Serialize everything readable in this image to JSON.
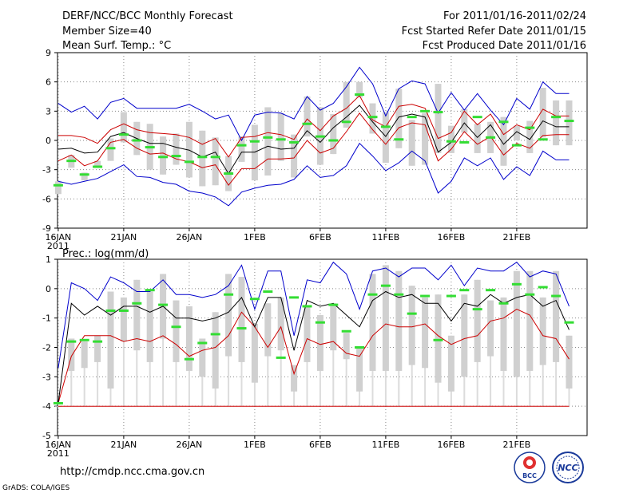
{
  "header": {
    "title": "DERF/NCC/BCC Monthly Forecast",
    "member_size": "Member Size=40",
    "variable": "Mean Surf. Temp.: °C",
    "period": "For 2011/01/16-2011/02/24",
    "started": "Fcst Started Refer Date 2011/01/15",
    "produced": "Fcst Produced Date 2011/01/16"
  },
  "footer": {
    "url": "http://cmdp.ncc.cma.gov.cn",
    "grads": "GrADS: COLA/IGES",
    "logo_bcc": "BCC",
    "logo_ncc": "NCC"
  },
  "colors": {
    "max": "#0000cc",
    "min": "#cc0000",
    "mean": "#000000",
    "box": "#d0d0d0",
    "whisker": "#dcdcdc",
    "median": "#33dd33",
    "grid": "#888888"
  },
  "chart_data": [
    {
      "type": "box",
      "title": "Mean Surf. Temp.: °C",
      "ylim": [
        -9,
        9
      ],
      "yticks": [
        -9,
        -6,
        -3,
        0,
        3,
        6,
        9
      ],
      "x_start_day": 0,
      "x_end_day": 39,
      "xtick_labels": [
        {
          "day": 0,
          "label": "16JAN",
          "sub": "2011"
        },
        {
          "day": 5,
          "label": "21JAN"
        },
        {
          "day": 10,
          "label": "26JAN"
        },
        {
          "day": 15,
          "label": "1FEB"
        },
        {
          "day": 20,
          "label": "6FEB"
        },
        {
          "day": 25,
          "label": "11FEB"
        },
        {
          "day": 30,
          "label": "16FEB"
        },
        {
          "day": 35,
          "label": "21FEB"
        }
      ],
      "series": [
        {
          "name": "max",
          "values": [
            3.8,
            2.9,
            3.5,
            2.2,
            3.9,
            4.3,
            3.3,
            3.3,
            3.3,
            3.3,
            3.7,
            3.0,
            2.2,
            2.6,
            0.0,
            2.6,
            2.9,
            2.8,
            2.2,
            4.5,
            3.1,
            3.8,
            5.5,
            7.5,
            5.8,
            2.5,
            5.3,
            6.1,
            5.8,
            2.8,
            4.9,
            3.1,
            4.8,
            3.1,
            1.6,
            4.3,
            3.2,
            6.0,
            4.8,
            4.8
          ]
        },
        {
          "name": "mean_plus_sd",
          "values": [
            0.5,
            0.5,
            0.3,
            -0.3,
            1.1,
            1.7,
            1.1,
            0.8,
            0.7,
            0.6,
            0.3,
            -0.4,
            0.2,
            -1.7,
            0.3,
            0.4,
            0.8,
            0.6,
            0.1,
            2.2,
            1.0,
            2.5,
            3.3,
            4.6,
            2.1,
            1.4,
            3.5,
            3.7,
            3.3,
            0.2,
            0.8,
            3.0,
            1.6,
            2.7,
            0.6,
            1.6,
            1.1,
            3.2,
            2.5,
            2.5
          ]
        },
        {
          "name": "mean",
          "values": [
            -0.9,
            -0.8,
            -1.3,
            -1.2,
            0.4,
            0.8,
            0.2,
            -0.3,
            -0.3,
            -0.7,
            -1.0,
            -1.7,
            -1.2,
            -3.4,
            -1.2,
            -1.2,
            -0.6,
            -0.9,
            -0.8,
            1.0,
            -0.2,
            1.3,
            2.4,
            3.6,
            1.9,
            0.4,
            2.4,
            2.7,
            2.4,
            -1.2,
            -0.2,
            1.8,
            0.3,
            1.6,
            -0.4,
            0.9,
            0.1,
            2.0,
            1.4,
            1.4
          ]
        },
        {
          "name": "mean_minus_sd",
          "values": [
            -2.1,
            -1.5,
            -2.6,
            -2.1,
            -0.2,
            0.1,
            -0.8,
            -1.4,
            -1.3,
            -1.9,
            -2.2,
            -2.8,
            -2.5,
            -4.6,
            -2.9,
            -2.9,
            -1.9,
            -1.9,
            -1.8,
            0.0,
            -1.3,
            -0.8,
            0.9,
            2.8,
            1.1,
            -0.4,
            1.3,
            1.8,
            1.6,
            -2.1,
            -0.9,
            0.9,
            -0.4,
            0.4,
            -1.5,
            -0.3,
            -0.8,
            0.5,
            0.6,
            0.6
          ]
        },
        {
          "name": "min",
          "values": [
            -4.2,
            -4.5,
            -4.2,
            -3.9,
            -3.2,
            -2.5,
            -3.7,
            -3.8,
            -4.3,
            -4.5,
            -5.2,
            -5.4,
            -5.8,
            -6.7,
            -5.3,
            -4.9,
            -4.6,
            -4.5,
            -4.0,
            -2.6,
            -3.8,
            -3.6,
            -2.6,
            -0.3,
            -1.6,
            -3.1,
            -2.3,
            -1.1,
            -2.1,
            -5.4,
            -4.2,
            -1.8,
            -2.6,
            -1.8,
            -4.0,
            -2.7,
            -3.6,
            -1.1,
            -2.0,
            -2.0
          ]
        },
        {
          "name": "box_upper",
          "values": [
            -4.2,
            -1.5,
            -3.3,
            -2.1,
            0.2,
            2.9,
            1.9,
            1.7,
            0.4,
            0.7,
            1.9,
            1.0,
            0.3,
            -1.6,
            0.4,
            1.6,
            3.4,
            2.8,
            0.6,
            4.5,
            3.4,
            2.7,
            6.0,
            6.0,
            3.8,
            2.9,
            5.3,
            2.1,
            2.8,
            5.8,
            1.5,
            3.2,
            1.7,
            1.9,
            2.4,
            1.5,
            2.0,
            5.4,
            4.1,
            4.1
          ]
        },
        {
          "name": "box_lower",
          "values": [
            -5.5,
            -2.8,
            -4.1,
            -2.8,
            -2.1,
            -0.2,
            -1.5,
            -3.0,
            -3.5,
            -2.5,
            -3.8,
            -4.7,
            -4.6,
            -5.2,
            -2.2,
            -4.1,
            -3.6,
            -2.1,
            -3.8,
            0.4,
            -2.5,
            -1.4,
            1.3,
            4.4,
            0.7,
            -2.3,
            -0.8,
            -2.6,
            -2.5,
            -1.3,
            -1.3,
            0.8,
            -1.3,
            -1.3,
            -2.6,
            0.0,
            -1.3,
            0.3,
            -0.5,
            -0.5
          ]
        },
        {
          "name": "median",
          "values": [
            -4.6,
            -2.1,
            -3.5,
            -2.7,
            -0.8,
            0.6,
            0.0,
            -0.7,
            -1.7,
            -1.6,
            -2.2,
            -1.7,
            -1.7,
            -3.4,
            -0.5,
            -0.1,
            0.3,
            0.1,
            -0.2,
            1.7,
            0.4,
            0.0,
            1.9,
            4.7,
            2.4,
            1.4,
            0.1,
            2.4,
            3.0,
            2.9,
            -0.1,
            -0.2,
            2.4,
            0.3,
            1.9,
            -0.5,
            1.3,
            0.1,
            2.4,
            2.0
          ]
        }
      ]
    },
    {
      "type": "box",
      "title": "Prec.: log(mm/d)",
      "ylim": [
        -5,
        1
      ],
      "yticks": [
        -5,
        -4,
        -3,
        -2,
        -1,
        0,
        1
      ],
      "x_start_day": 0,
      "x_end_day": 39,
      "xtick_labels": [
        {
          "day": 0,
          "label": "16JAN",
          "sub": "2011"
        },
        {
          "day": 5,
          "label": "21JAN"
        },
        {
          "day": 10,
          "label": "26JAN"
        },
        {
          "day": 15,
          "label": "1FEB"
        },
        {
          "day": 20,
          "label": "6FEB"
        },
        {
          "day": 25,
          "label": "11FEB"
        },
        {
          "day": 30,
          "label": "16FEB"
        },
        {
          "day": 35,
          "label": "21FEB"
        }
      ],
      "series": [
        {
          "name": "max",
          "values": [
            -2.7,
            0.2,
            0.0,
            -0.4,
            0.4,
            0.2,
            -0.1,
            -0.1,
            0.3,
            -0.2,
            -0.2,
            -0.3,
            -0.2,
            0.1,
            0.8,
            -0.7,
            0.6,
            0.6,
            -1.6,
            0.3,
            0.2,
            0.9,
            0.5,
            -0.7,
            0.6,
            0.7,
            0.4,
            0.7,
            0.7,
            0.3,
            0.8,
            0.1,
            0.7,
            0.6,
            0.6,
            0.9,
            0.4,
            0.6,
            0.5,
            -0.6
          ]
        },
        {
          "name": "mean",
          "values": [
            -3.9,
            -0.5,
            -0.9,
            -0.6,
            -0.9,
            -0.6,
            -0.6,
            -0.8,
            -0.6,
            -1.0,
            -1.0,
            -1.1,
            -1.0,
            -0.8,
            -0.3,
            -1.3,
            -0.3,
            -0.3,
            -2.1,
            -0.4,
            -0.6,
            -0.5,
            -0.9,
            -1.3,
            -0.4,
            -0.1,
            -0.3,
            -0.2,
            -0.5,
            -0.5,
            -1.1,
            -0.5,
            -0.6,
            -0.2,
            -0.5,
            -0.3,
            -0.2,
            -0.6,
            -0.4,
            -1.4
          ]
        },
        {
          "name": "min",
          "values": [
            -3.9,
            -2.3,
            -1.6,
            -1.6,
            -1.6,
            -1.8,
            -1.7,
            -1.8,
            -1.6,
            -1.9,
            -2.3,
            -2.1,
            -2.0,
            -1.6,
            -0.8,
            -1.3,
            -2.0,
            -1.3,
            -2.9,
            -1.7,
            -1.9,
            -1.8,
            -2.2,
            -2.3,
            -1.6,
            -1.2,
            -1.3,
            -1.3,
            -1.2,
            -1.6,
            -1.9,
            -1.7,
            -1.6,
            -1.1,
            -1.0,
            -0.7,
            -0.9,
            -1.6,
            -1.7,
            -2.4
          ]
        },
        {
          "name": "floor",
          "values": [
            -4.0,
            -4.0,
            -4.0,
            -4.0,
            -4.0,
            -4.0,
            -4.0,
            -4.0,
            -4.0,
            -4.0,
            -4.0,
            -4.0,
            -4.0,
            -4.0,
            -4.0,
            -4.0,
            -4.0,
            -4.0,
            -4.0,
            -4.0,
            -4.0,
            -4.0,
            -4.0,
            -4.0,
            -4.0,
            -4.0,
            -4.0,
            -4.0,
            -4.0,
            -4.0,
            -4.0,
            -4.0,
            -4.0,
            -4.0,
            -4.0,
            -4.0,
            -4.0,
            -4.0,
            -4.0,
            -4.0
          ]
        },
        {
          "name": "box_upper",
          "values": [
            -4.0,
            -1.7,
            -1.8,
            -1.6,
            -0.1,
            -0.3,
            0.3,
            -0.1,
            0.5,
            -0.4,
            -0.6,
            -1.7,
            -0.8,
            0.5,
            0.4,
            -1.2,
            -0.5,
            -0.3,
            -2.6,
            -0.6,
            -0.9,
            -0.5,
            -1.5,
            -2.0,
            0.5,
            0.8,
            0.6,
            0.1,
            -0.3,
            -0.2,
            -1.6,
            -0.2,
            0.3,
            -0.4,
            -0.3,
            0.6,
            0.6,
            -0.3,
            0.6,
            -1.6
          ]
        },
        {
          "name": "box_lower",
          "values": [
            -4.0,
            -2.8,
            -2.7,
            -2.5,
            -3.4,
            -1.8,
            -2.1,
            -2.5,
            -1.7,
            -2.5,
            -2.8,
            -3.0,
            -3.4,
            -2.3,
            -2.5,
            -3.2,
            -2.3,
            -2.1,
            -3.5,
            -2.5,
            -2.8,
            -2.1,
            -2.4,
            -3.5,
            -2.8,
            -2.8,
            -2.8,
            -2.6,
            -2.7,
            -3.2,
            -3.5,
            -3.0,
            -2.5,
            -2.3,
            -2.8,
            -3.0,
            -2.8,
            -2.6,
            -2.5,
            -3.4
          ]
        },
        {
          "name": "median",
          "values": [
            -3.9,
            -1.8,
            -1.75,
            -1.8,
            -0.75,
            -0.75,
            -0.5,
            -0.05,
            -0.55,
            -1.3,
            -2.4,
            -1.85,
            -1.55,
            -0.2,
            -1.35,
            -0.35,
            -0.1,
            -2.35,
            -0.3,
            -0.6,
            -1.15,
            -0.55,
            -1.45,
            -2.0,
            -0.2,
            0.1,
            -0.2,
            -0.85,
            -0.25,
            -1.75,
            -0.25,
            -0.05,
            -0.7,
            -0.05,
            -0.5,
            0.15,
            -0.2,
            0.05,
            -0.25,
            -1.15
          ]
        }
      ]
    }
  ]
}
